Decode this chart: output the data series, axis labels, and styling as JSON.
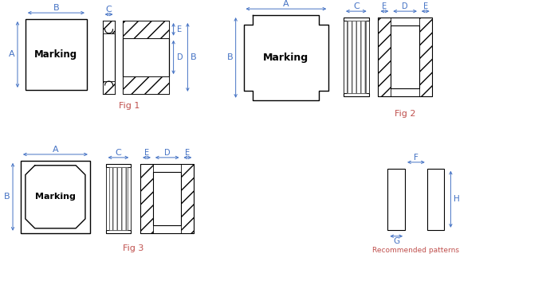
{
  "bg_color": "#ffffff",
  "lc": "#000000",
  "dc": "#4472c4",
  "fc": "#c0504d",
  "fig1_label": "Fig 1",
  "fig2_label": "Fig 2",
  "fig3_label": "Fig 3",
  "rec_label": "Recommended patterns",
  "marking_text": "Marking"
}
